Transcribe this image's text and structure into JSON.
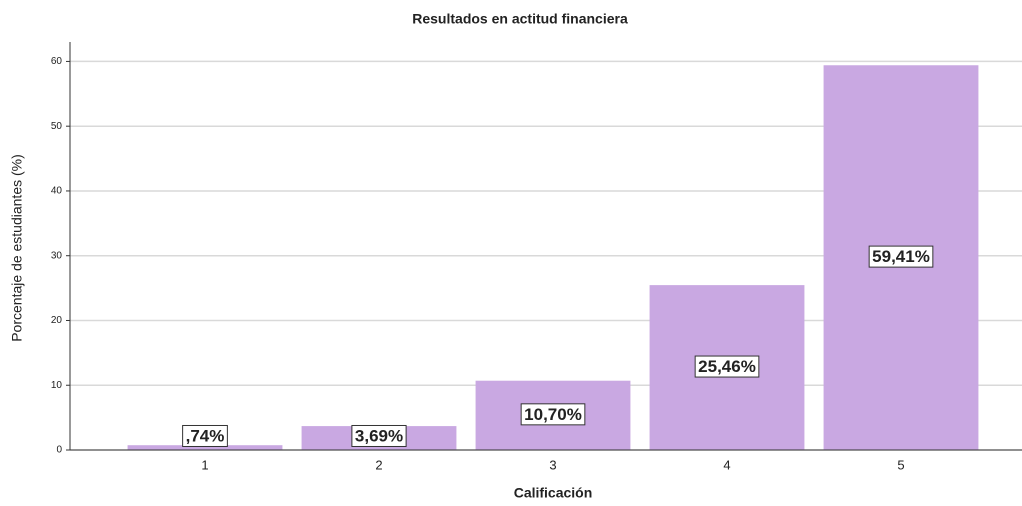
{
  "chart_data": {
    "type": "bar",
    "title": "Resultados en actitud financiera",
    "x_label": "Calificación",
    "y_label": "Porcentaje de estudiantes (%)",
    "categories": [
      "1",
      "2",
      "3",
      "4",
      "5"
    ],
    "values": [
      0.74,
      3.69,
      10.7,
      25.46,
      59.41
    ],
    "value_labels": [
      ",74%",
      "3,69%",
      "10,70%",
      "25,46%",
      "59,41%"
    ],
    "color": "#c9a8e2",
    "ylim": [
      0,
      63
    ],
    "yticks": [
      0,
      10,
      20,
      30,
      40,
      50,
      60
    ],
    "grid": true
  }
}
